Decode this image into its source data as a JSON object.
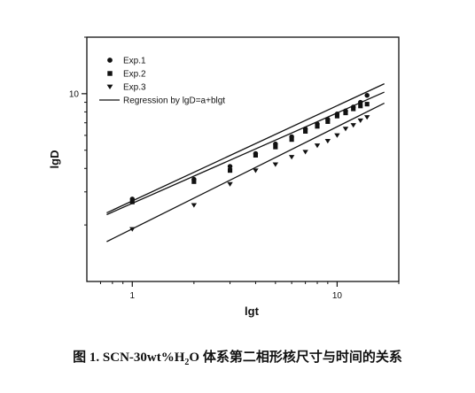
{
  "chart_data": {
    "type": "scatter",
    "xscale": "log",
    "yscale": "log",
    "xlim": [
      0.6,
      20
    ],
    "ylim": [
      1.0,
      20
    ],
    "xlabel": "lgt",
    "ylabel": "lgD",
    "x_ticks": [
      "1",
      "10"
    ],
    "y_ticks": [
      "10"
    ],
    "legend_position": "top-left",
    "series": [
      {
        "name": "Exp.1",
        "marker": "circle",
        "x": [
          1,
          2,
          3,
          4,
          5,
          6,
          7,
          8,
          9,
          10,
          11,
          12,
          13,
          14
        ],
        "y": [
          2.75,
          3.5,
          4.1,
          4.8,
          5.4,
          5.9,
          6.5,
          6.9,
          7.3,
          7.8,
          8.1,
          8.5,
          9.0,
          9.8
        ]
      },
      {
        "name": "Exp.2",
        "marker": "square",
        "x": [
          1,
          2,
          3,
          4,
          5,
          6,
          7,
          8,
          9,
          10,
          11,
          12,
          13,
          14
        ],
        "y": [
          2.65,
          3.4,
          3.9,
          4.7,
          5.2,
          5.7,
          6.3,
          6.7,
          7.1,
          7.6,
          7.9,
          8.3,
          8.6,
          8.8
        ]
      },
      {
        "name": "Exp.3",
        "marker": "triangle-down",
        "x": [
          1,
          2,
          3,
          4,
          5,
          6,
          7,
          8,
          9,
          10,
          11,
          12,
          13,
          14
        ],
        "y": [
          1.9,
          2.55,
          3.3,
          3.9,
          4.2,
          4.6,
          4.9,
          5.3,
          5.6,
          6.0,
          6.5,
          6.8,
          7.2,
          7.5
        ]
      }
    ],
    "regression": {
      "name": "Regression by lgD=a+blgt",
      "lines": [
        {
          "x": [
            0.75,
            17
          ],
          "y": [
            2.32,
            11.3
          ]
        },
        {
          "x": [
            0.75,
            17
          ],
          "y": [
            2.27,
            10.2
          ]
        },
        {
          "x": [
            0.75,
            17
          ],
          "y": [
            1.63,
            8.9
          ]
        }
      ]
    }
  },
  "caption": {
    "prefix": "图 1. SCN-30wt%H",
    "subscript": "2",
    "suffix": "O 体系第二相形核尺寸与时间的关系"
  }
}
